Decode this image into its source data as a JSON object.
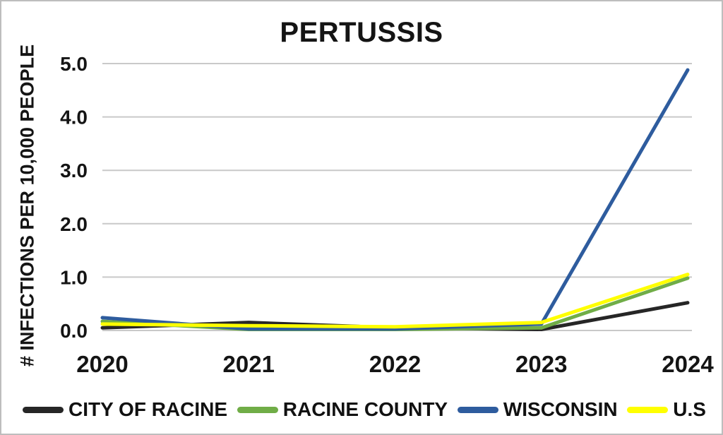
{
  "chart_data": {
    "type": "line",
    "title": "PERTUSSIS",
    "ylabel": "# INFECTIONS PER 10,000 PEOPLE",
    "xlabel": "",
    "categories": [
      "2020",
      "2021",
      "2022",
      "2023",
      "2024"
    ],
    "ylim": [
      0,
      5
    ],
    "ytick_labels": [
      "0.0",
      "1.0",
      "2.0",
      "3.0",
      "4.0",
      "5.0"
    ],
    "grid": "horizontal",
    "gridline_color": "#c9c9c9",
    "frame_border_color": "#bdbdbd",
    "background_color": "#ffffff",
    "text_color": "#141414",
    "legend_position": "bottom",
    "series": [
      {
        "name": "CITY OF RACINE",
        "color": "#262626",
        "values": [
          0.05,
          0.15,
          0.05,
          0.02,
          0.52
        ]
      },
      {
        "name": "RACINE COUNTY",
        "color": "#70ad47",
        "values": [
          0.17,
          0.02,
          0.02,
          0.05,
          0.98
        ]
      },
      {
        "name": "WISCONSIN",
        "color": "#2e5c9e",
        "values": [
          0.24,
          0.03,
          0.03,
          0.12,
          4.88
        ]
      },
      {
        "name": "U.S",
        "color": "#ffff00",
        "values": [
          0.12,
          0.09,
          0.07,
          0.15,
          1.05
        ]
      }
    ]
  }
}
